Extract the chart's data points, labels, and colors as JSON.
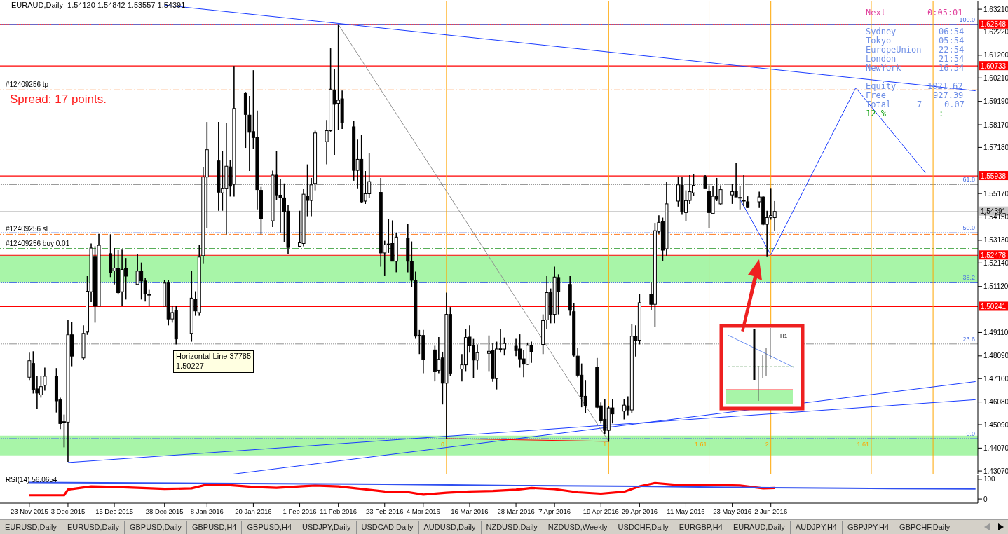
{
  "chart_data": [
    {
      "type": "candlestick",
      "title": "EURAUD,Daily  1.54120 1.54842 1.53557 1.54391",
      "tick_labels": "y",
      "x": [
        "2015-11-23",
        "2015-11-24",
        "2015-11-25",
        "2015-11-26",
        "2015-11-27",
        "2015-11-30",
        "2015-12-01",
        "2015-12-02",
        "2015-12-03",
        "2015-12-04",
        "2015-12-07",
        "2015-12-08",
        "2015-12-09",
        "2015-12-10",
        "2015-12-11",
        "2015-12-14",
        "2015-12-15",
        "2015-12-16",
        "2015-12-17",
        "2015-12-18",
        "2015-12-21",
        "2015-12-22",
        "2015-12-23",
        "2015-12-24",
        "2015-12-28",
        "2015-12-29",
        "2015-12-30",
        "2015-12-31",
        "2016-01-04",
        "2016-01-05",
        "2016-01-06",
        "2016-01-07",
        "2016-01-08",
        "2016-01-11",
        "2016-01-12",
        "2016-01-13",
        "2016-01-14",
        "2016-01-15",
        "2016-01-18",
        "2016-01-19",
        "2016-01-20",
        "2016-01-21",
        "2016-01-22",
        "2016-01-25",
        "2016-01-26",
        "2016-01-27",
        "2016-01-28",
        "2016-01-29",
        "2016-02-01",
        "2016-02-02",
        "2016-02-03",
        "2016-02-04",
        "2016-02-05",
        "2016-02-08",
        "2016-02-09",
        "2016-02-10",
        "2016-02-11",
        "2016-02-12",
        "2016-02-15",
        "2016-02-16",
        "2016-02-17",
        "2016-02-18",
        "2016-02-19",
        "2016-02-22",
        "2016-02-23",
        "2016-02-24",
        "2016-02-25",
        "2016-02-26",
        "2016-02-29",
        "2016-03-01",
        "2016-03-02",
        "2016-03-03",
        "2016-03-04",
        "2016-03-07",
        "2016-03-08",
        "2016-03-09",
        "2016-03-10",
        "2016-03-11",
        "2016-03-14",
        "2016-03-15",
        "2016-03-16",
        "2016-03-17",
        "2016-03-18",
        "2016-03-21",
        "2016-03-22",
        "2016-03-23",
        "2016-03-24",
        "2016-03-25",
        "2016-03-28",
        "2016-03-29",
        "2016-03-30",
        "2016-03-31",
        "2016-04-01",
        "2016-04-04",
        "2016-04-05",
        "2016-04-06",
        "2016-04-07",
        "2016-04-08",
        "2016-04-11",
        "2016-04-12",
        "2016-04-13",
        "2016-04-14",
        "2016-04-15",
        "2016-04-18",
        "2016-04-19",
        "2016-04-20",
        "2016-04-21",
        "2016-04-22",
        "2016-04-25",
        "2016-04-26",
        "2016-04-27",
        "2016-04-28",
        "2016-04-29",
        "2016-05-02",
        "2016-05-03",
        "2016-05-04",
        "2016-05-05",
        "2016-05-06",
        "2016-05-09",
        "2016-05-10",
        "2016-05-11",
        "2016-05-12",
        "2016-05-13",
        "2016-05-16",
        "2016-05-17",
        "2016-05-18",
        "2016-05-19",
        "2016-05-20",
        "2016-05-23",
        "2016-05-24",
        "2016-05-25",
        "2016-05-26",
        "2016-05-27",
        "2016-05-30",
        "2016-05-31",
        "2016-06-01",
        "2016-06-02",
        "2016-06-03"
      ],
      "ohlc": [
        [
          1.4716,
          1.4823,
          1.4704,
          1.4788
        ],
        [
          1.4776,
          1.4829,
          1.4645,
          1.4663
        ],
        [
          1.4665,
          1.4722,
          1.4579,
          1.4647
        ],
        [
          1.4639,
          1.472,
          1.4627,
          1.4675
        ],
        [
          1.4681,
          1.4758,
          1.4657,
          1.472
        ],
        [
          1.472,
          1.4756,
          1.4562,
          1.4613
        ],
        [
          1.4617,
          1.4627,
          1.449,
          1.4514
        ],
        [
          1.4522,
          1.4553,
          1.441,
          1.452
        ],
        [
          1.452,
          1.4966,
          1.4347,
          1.4901
        ],
        [
          1.4901,
          1.4958,
          1.4764,
          1.4808
        ],
        [
          1.48,
          1.4942,
          1.4791,
          1.4907
        ],
        [
          1.4913,
          1.5157,
          1.4901,
          1.5091
        ],
        [
          1.5089,
          1.5299,
          1.5044,
          1.5279
        ],
        [
          1.524,
          1.5287,
          1.4954,
          1.5026
        ],
        [
          1.5026,
          1.5341,
          1.5026,
          1.5291
        ],
        [
          1.5255,
          1.5339,
          1.5153,
          1.5172
        ],
        [
          1.518,
          1.5279,
          1.5121,
          1.5192
        ],
        [
          1.5192,
          1.527,
          1.5077,
          1.5085
        ],
        [
          1.5089,
          1.5272,
          1.5026,
          1.5186
        ],
        [
          1.5191,
          1.5236,
          1.5055,
          1.5157
        ],
        [
          1.5121,
          1.5252,
          1.5117,
          1.5179
        ],
        [
          1.5177,
          1.5216,
          1.5055,
          1.5136
        ],
        [
          1.5136,
          1.5148,
          1.5046,
          1.5082
        ],
        [
          1.5077,
          1.5097,
          1.5026,
          1.5075
        ],
        [
          1.5026,
          1.5139,
          1.5026,
          1.5127
        ],
        [
          1.5127,
          1.5139,
          1.4942,
          1.497
        ],
        [
          1.497,
          1.5026,
          1.4954,
          1.4998
        ],
        [
          1.5008,
          1.5026,
          1.4859,
          1.4883
        ],
        [
          1.4907,
          1.518,
          1.4871,
          1.5061
        ],
        [
          1.5055,
          1.5091,
          1.4984,
          1.5005
        ],
        [
          1.4998,
          1.5293,
          1.4984,
          1.524
        ],
        [
          1.5246,
          1.5633,
          1.521,
          1.5589
        ],
        [
          1.5589,
          1.5829,
          1.5365,
          1.5708
        ],
        [
          1.5659,
          1.5829,
          1.5442,
          1.5523
        ],
        [
          1.552,
          1.5704,
          1.5442,
          1.554
        ],
        [
          1.554,
          1.5823,
          1.5339,
          1.5636
        ],
        [
          1.5633,
          1.5662,
          1.5504,
          1.5549
        ],
        [
          1.5558,
          1.6073,
          1.5504,
          1.5888
        ],
        [
          1.5954,
          1.596,
          1.5716,
          1.5862
        ],
        [
          1.5859,
          1.5942,
          1.5615,
          1.5784
        ],
        [
          1.5787,
          1.6055,
          1.571,
          1.5761
        ],
        [
          1.5763,
          1.5879,
          1.5448,
          1.5534
        ],
        [
          1.5531,
          1.5546,
          1.5339,
          1.5406
        ],
        [
          1.5398,
          1.5617,
          1.5371,
          1.5597
        ],
        [
          1.5597,
          1.5704,
          1.549,
          1.5511
        ],
        [
          1.551,
          1.5579,
          1.5347,
          1.5498
        ],
        [
          1.5498,
          1.5561,
          1.5305,
          1.5439
        ],
        [
          1.544,
          1.5466,
          1.5252,
          1.5282
        ],
        [
          1.5287,
          1.5442,
          1.5282,
          1.5302
        ],
        [
          1.5299,
          1.5537,
          1.5287,
          1.5514
        ],
        [
          1.5505,
          1.5644,
          1.5418,
          1.5487
        ],
        [
          1.5487,
          1.5585,
          1.5418,
          1.5555
        ],
        [
          1.5561,
          1.5791,
          1.5531,
          1.5781
        ],
        [
          1.5743,
          1.5838,
          1.5644,
          1.5791
        ],
        [
          1.5791,
          1.615,
          1.5787,
          1.5972
        ],
        [
          1.5969,
          1.6061,
          1.5686,
          1.5906
        ],
        [
          1.591,
          1.6255,
          1.5793,
          1.5924
        ],
        [
          1.593,
          1.5966,
          1.5799,
          1.5827
        ],
        [
          1.5808,
          1.5835,
          1.5573,
          1.5618
        ],
        [
          1.5618,
          1.5752,
          1.554,
          1.5666
        ],
        [
          1.5666,
          1.5772,
          1.5478,
          1.5481
        ],
        [
          1.5484,
          1.5615,
          1.5472,
          1.5516
        ],
        [
          1.5516,
          1.5692,
          1.5496,
          1.5569
        ],
        [
          1.5522,
          1.5585,
          1.5198,
          1.5258
        ],
        [
          1.5258,
          1.5311,
          1.5157,
          1.5293
        ],
        [
          1.5296,
          1.5406,
          1.5258,
          1.5297
        ],
        [
          1.5299,
          1.54,
          1.5222,
          1.5222
        ],
        [
          1.5222,
          1.5347,
          1.5174,
          1.5327
        ],
        [
          1.5321,
          1.5386,
          1.5174,
          1.5222
        ],
        [
          1.5222,
          1.5308,
          1.5109,
          1.5139
        ],
        [
          1.5139,
          1.5177,
          1.4883,
          1.4895
        ],
        [
          1.4898,
          1.4922,
          1.4817,
          1.4899
        ],
        [
          1.4898,
          1.4922,
          1.4734,
          1.4794
        ],
        [
          1.4835,
          1.4853,
          1.4698,
          1.474
        ],
        [
          1.4746,
          1.4891,
          1.4734,
          1.4794
        ],
        [
          1.48,
          1.4827,
          1.4597,
          1.469
        ],
        [
          1.469,
          1.5085,
          1.4445,
          1.499
        ],
        [
          1.499,
          1.5022,
          1.4722,
          1.4734
        ],
        [
          1.4752,
          1.4817,
          1.4698,
          1.477
        ],
        [
          1.477,
          1.4925,
          1.474,
          1.4889
        ],
        [
          1.4891,
          1.4942,
          1.4823,
          1.4853
        ],
        [
          1.4853,
          1.4883,
          1.4713,
          1.4791
        ],
        [
          1.4791,
          1.4859,
          1.4748,
          1.4823
        ],
        [
          1.482,
          1.4898,
          1.474,
          1.4829
        ],
        [
          1.4832,
          1.4865,
          1.4696,
          1.471
        ],
        [
          1.471,
          1.4871,
          1.4663,
          1.4839
        ],
        [
          1.4839,
          1.4927,
          1.4823,
          1.484
        ],
        [
          1.4839,
          1.4889,
          1.4811,
          1.4863
        ],
        [
          1.4851,
          1.4883,
          1.4808,
          1.4832
        ],
        [
          1.4839,
          1.4903,
          1.4758,
          1.4796
        ],
        [
          1.4796,
          1.4835,
          1.4716,
          1.4773
        ],
        [
          1.4772,
          1.4867,
          1.477,
          1.4855
        ],
        [
          1.4856,
          1.4871,
          1.4779,
          1.4826
        ],
        [
          1.4859,
          1.499,
          1.4817,
          1.4963
        ],
        [
          1.4966,
          1.5157,
          1.4925,
          1.5085
        ],
        [
          1.5085,
          1.5103,
          1.4951,
          1.499
        ],
        [
          1.499,
          1.5198,
          1.4951,
          1.5153
        ],
        [
          1.5151,
          1.5165,
          1.499,
          1.5089
        ],
        [
          1.5121,
          1.5157,
          1.4984,
          1.5008
        ],
        [
          1.5002,
          1.5038,
          1.4806,
          1.4812
        ],
        [
          1.4808,
          1.4844,
          1.4716,
          1.4725
        ],
        [
          1.4725,
          1.4776,
          1.4585,
          1.4633
        ],
        [
          1.4633,
          1.4704,
          1.4561,
          1.4591
        ],
        [
          1.4758,
          1.48,
          1.4581,
          1.4585
        ],
        [
          1.4591,
          1.4606,
          1.4514,
          1.4526
        ],
        [
          1.4532,
          1.4621,
          1.4466,
          1.4484
        ],
        [
          1.4484,
          1.4591,
          1.4434,
          1.4582
        ],
        [
          1.4582,
          1.4621,
          1.4514,
          1.4556
        ],
        [
          1.4568,
          1.4621,
          1.4532,
          1.4594
        ],
        [
          1.4591,
          1.4633,
          1.455,
          1.4573
        ],
        [
          1.4573,
          1.4948,
          1.4558,
          1.4895
        ],
        [
          1.4895,
          1.4942,
          1.4806,
          1.4877
        ],
        [
          1.4877,
          1.5079,
          1.4859,
          1.5041
        ],
        [
          1.5077,
          1.5129,
          1.5008,
          1.5034
        ],
        [
          1.5034,
          1.5389,
          1.4936,
          1.5355
        ],
        [
          1.5352,
          1.5422,
          1.5341,
          1.5391
        ],
        [
          1.5394,
          1.5412,
          1.5222,
          1.527
        ],
        [
          1.5276,
          1.5567,
          1.5246,
          1.5472
        ],
        [
          1.5484,
          1.5591,
          1.546,
          1.5555
        ],
        [
          1.5553,
          1.5591,
          1.5424,
          1.5439
        ],
        [
          1.5434,
          1.5531,
          1.5395,
          1.5486
        ],
        [
          1.5487,
          1.5597,
          1.5472,
          1.5525
        ],
        [
          1.552,
          1.5603,
          1.5508,
          1.5553
        ],
        [
          1.5591,
          1.5597,
          1.5541,
          1.5541
        ],
        [
          1.5525,
          1.5553,
          1.5365,
          1.5434
        ],
        [
          1.543,
          1.5549,
          1.5427,
          1.5505
        ],
        [
          1.5505,
          1.5585,
          1.5484,
          1.5493
        ],
        [
          1.5472,
          1.5553,
          1.5466,
          1.5534
        ],
        [
          1.5511,
          1.5558,
          1.5472,
          1.5525
        ],
        [
          1.5528,
          1.565,
          1.5502,
          1.5502
        ],
        [
          1.55,
          1.5549,
          1.5448,
          1.5498
        ],
        [
          1.5487,
          1.5597,
          1.5462,
          1.5486
        ],
        [
          1.5481,
          1.5505,
          1.5454,
          1.5456
        ],
        [
          1.5481,
          1.5525,
          1.5454,
          1.5502
        ],
        [
          1.5502,
          1.5508,
          1.5379,
          1.5383
        ],
        [
          1.5383,
          1.5442,
          1.524,
          1.5412
        ],
        [
          1.5413,
          1.5541,
          1.5403,
          1.5421
        ],
        [
          1.5412,
          1.54842,
          1.53557,
          1.54391
        ]
      ],
      "xlim": [
        "2015-11-16",
        "2016-07-25"
      ],
      "ylim": [
        1.4292,
        1.6358
      ],
      "yticks": [
        {
          "value": 1.6321,
          "label": "1.63210"
        },
        {
          "value": 1.6222,
          "label": "1.62220"
        },
        {
          "value": 1.612,
          "label": "1.61200"
        },
        {
          "value": 1.6021,
          "label": "1.60210"
        },
        {
          "value": 1.5919,
          "label": "1.59190"
        },
        {
          "value": 1.5817,
          "label": "1.58170"
        },
        {
          "value": 1.5718,
          "label": "1.57180"
        },
        {
          "value": 1.5517,
          "label": "1.55170"
        },
        {
          "value": 1.5415,
          "label": "1.54150"
        },
        {
          "value": 1.5313,
          "label": "1.53130"
        },
        {
          "value": 1.5214,
          "label": "1.52140"
        },
        {
          "value": 1.5112,
          "label": "1.51120"
        },
        {
          "value": 1.4911,
          "label": "1.49110"
        },
        {
          "value": 1.4809,
          "label": "1.48090"
        },
        {
          "value": 1.471,
          "label": "1.47100"
        },
        {
          "value": 1.4608,
          "label": "1.46080"
        },
        {
          "value": 1.4509,
          "label": "1.45090"
        },
        {
          "value": 1.4407,
          "label": "1.44070"
        },
        {
          "value": 1.4307,
          "label": "1.43070"
        }
      ],
      "bands": [
        {
          "axis": "y",
          "from": 1.5128,
          "to": 1.5248,
          "color": "#a8f5a8"
        },
        {
          "axis": "y",
          "from": 1.4375,
          "to": 1.4461,
          "color": "#a8f5a8"
        }
      ],
      "ref_lines": [
        {
          "axis": "y",
          "value": 1.62548,
          "label": "1.62548",
          "color": "#ff0000",
          "line_style": "solid"
        },
        {
          "axis": "y",
          "value": 1.60733,
          "label": "1.60733",
          "color": "#ff0000",
          "line_style": "solid"
        },
        {
          "axis": "y",
          "value": 1.55938,
          "label": "1.55938",
          "color": "#ff0000",
          "line_style": "solid"
        },
        {
          "axis": "y",
          "value": 1.52478,
          "label": "1.52478",
          "color": "#ff0000",
          "line_style": "solid"
        },
        {
          "axis": "y",
          "value": 1.50241,
          "label": "1.50241",
          "color": "#ff0000",
          "line_style": "solid"
        },
        {
          "axis": "y",
          "value": 1.54391,
          "label": "1.54391",
          "color": "#c8c8c8",
          "line_style": "solid"
        },
        {
          "axis": "y",
          "value": 1.5969,
          "label": "#12409256 tp",
          "color": "#ff7f27",
          "line_style": "dashed"
        },
        {
          "axis": "y",
          "value": 1.5339,
          "label": "#12409256 sl",
          "color": "#ff7f27",
          "line_style": "dashed"
        },
        {
          "axis": "y",
          "value": 1.5277,
          "label": "#12409256 buy 0.01",
          "color": "#2e9a2e",
          "line_style": "dashed"
        },
        {
          "axis": "y",
          "value": 1.6255,
          "color": "#4a6fe3",
          "line_style": "dotted"
        },
        {
          "axis": "y",
          "value": 1.5556,
          "color": "#909090",
          "line_style": "dotted"
        },
        {
          "axis": "y",
          "value": 1.5346,
          "color": "#4a6fe3",
          "line_style": "dotted"
        },
        {
          "axis": "y",
          "value": 1.5128,
          "color": "#4a6fe3",
          "line_style": "dotted"
        },
        {
          "axis": "y",
          "value": 1.4861,
          "color": "#909090",
          "line_style": "dotted"
        },
        {
          "axis": "y",
          "value": 1.4448,
          "color": "#4a6fe3",
          "line_style": "dotted"
        },
        {
          "axis": "x",
          "value": "2016-03-10",
          "label": "0",
          "color": "#ffa500",
          "line_style": "solid"
        },
        {
          "axis": "x",
          "value": "2016-04-21",
          "label": "1",
          "color": "#ffa500",
          "line_style": "solid"
        },
        {
          "axis": "x",
          "value": "2016-05-17",
          "label": "1.61",
          "color": "#ffa500",
          "line_style": "solid"
        },
        {
          "axis": "x",
          "value": "2016-06-02",
          "label": "2",
          "color": "#ffa500",
          "line_style": "solid"
        },
        {
          "axis": "x",
          "value": "2016-06-28",
          "label": "1.61",
          "color": "#ffa500",
          "line_style": "solid"
        },
        {
          "axis": "x",
          "value": "2016-07-14",
          "color": "#ffa500",
          "line_style": "solid"
        }
      ],
      "series": [
        {
          "type": "line",
          "color": "#1a3cff",
          "x": [
            "2015-12-28",
            "2016-07-25"
          ],
          "values": [
            1.6339,
            1.5965
          ]
        },
        {
          "type": "line",
          "color": "#1a3cff",
          "x": [
            "2016-05-25",
            "2016-06-02",
            "2016-06-24",
            "2016-07-12"
          ],
          "values": [
            1.5492,
            1.525,
            1.5978,
            1.5608
          ]
        },
        {
          "type": "line",
          "color": "#1a3cff",
          "x": [
            "2015-12-03",
            "2016-07-25"
          ],
          "values": [
            1.4344,
            1.4618
          ]
        },
        {
          "type": "line",
          "color": "#1a3cff",
          "x": [
            "2016-01-14",
            "2016-07-25"
          ],
          "values": [
            1.4292,
            1.4697
          ]
        },
        {
          "type": "line",
          "color": "#909090",
          "x": [
            "2016-02-11",
            "2016-04-21"
          ],
          "values": [
            1.6255,
            1.4436
          ]
        },
        {
          "type": "line",
          "color": "#ff0000",
          "x": [
            "2016-03-10",
            "2016-04-21"
          ],
          "values": [
            1.4448,
            1.4436
          ]
        }
      ],
      "annotations": [
        "Spread: 17 points.",
        "Horizontal Line 37785",
        "1.50227",
        "H1",
        "Next",
        "0:05:01",
        "Sydney",
        "06:54",
        "Tokyo",
        "05:54",
        "EuropeUnion",
        "22:54",
        "London",
        "21:54",
        "NewYork",
        "16:54",
        "Equity",
        "1021.62",
        "Free",
        "927.39",
        "Total",
        "7",
        "0.07",
        "12 %",
        ":",
        "EURUSD,Daily",
        "EURUSD,Daily",
        "GBPUSD,Daily",
        "GBPUSD,H4",
        "GBPUSD,H4",
        "USDJPY,Daily",
        "USDCAD,Daily",
        "AUDUSD,Daily",
        "NZDUSD,Daily",
        "NZDUSD,Weekly",
        "USDCHF,Daily",
        "EURGBP,H4",
        "EURAUD,Daily",
        "AUDJPY,H4",
        "GBPJPY,H4",
        "GBPCHF,Daily",
        {
          "text": "100.0",
          "y": 1.6255
        },
        {
          "text": "61.8",
          "y": 1.5556
        },
        {
          "text": "50.0",
          "y": 1.5346
        },
        {
          "text": "38.2",
          "y": 1.5128
        },
        {
          "text": "23.6",
          "y": 1.4861
        },
        {
          "text": "0.0",
          "y": 1.4448
        }
      ]
    },
    {
      "type": "line",
      "title": "RSI(14) 56.0654",
      "xlim": [
        "2015-11-16",
        "2016-07-25"
      ],
      "xticks": [
        {
          "value": "2015-11-23",
          "label": "23 Nov 2015"
        },
        {
          "value": "2015-12-03",
          "label": "3 Dec 2015"
        },
        {
          "value": "2015-12-15",
          "label": "15 Dec 2015"
        },
        {
          "value": "2015-12-28",
          "label": "28 Dec 2015"
        },
        {
          "value": "2016-01-08",
          "label": "8 Jan 2016"
        },
        {
          "value": "2016-01-20",
          "label": "20 Jan 2016"
        },
        {
          "value": "2016-02-01",
          "label": "1 Feb 2016"
        },
        {
          "value": "2016-02-11",
          "label": "11 Feb 2016"
        },
        {
          "value": "2016-02-23",
          "label": "23 Feb 2016"
        },
        {
          "value": "2016-03-04",
          "label": "4 Mar 2016"
        },
        {
          "value": "2016-03-16",
          "label": "16 Mar 2016"
        },
        {
          "value": "2016-03-28",
          "label": "28 Mar 2016"
        },
        {
          "value": "2016-04-07",
          "label": "7 Apr 2016"
        },
        {
          "value": "2016-04-19",
          "label": "19 Apr 2016"
        },
        {
          "value": "2016-04-29",
          "label": "29 Apr 2016"
        },
        {
          "value": "2016-05-11",
          "label": "11 May 2016"
        },
        {
          "value": "2016-05-23",
          "label": "23 May 2016"
        },
        {
          "value": "2016-06-02",
          "label": "2 Jun 2016"
        }
      ],
      "ylim": [
        -21,
        121
      ],
      "yticks": [
        0,
        100
      ],
      "series": [
        {
          "color": "#ff0000",
          "x": [
            "2015-11-23",
            "2015-12-02",
            "2015-12-03",
            "2015-12-09",
            "2015-12-15",
            "2015-12-21",
            "2015-12-28",
            "2016-01-04",
            "2016-01-08",
            "2016-01-14",
            "2016-01-20",
            "2016-01-26",
            "2016-02-01",
            "2016-02-05",
            "2016-02-11",
            "2016-02-17",
            "2016-02-23",
            "2016-02-29",
            "2016-03-04",
            "2016-03-10",
            "2016-03-16",
            "2016-03-22",
            "2016-03-28",
            "2016-04-01",
            "2016-04-07",
            "2016-04-13",
            "2016-04-19",
            "2016-04-25",
            "2016-04-29",
            "2016-05-03",
            "2016-05-09",
            "2016-05-13",
            "2016-05-19",
            "2016-05-25",
            "2016-05-31",
            "2016-06-03"
          ],
          "values": [
            19,
            19,
            48,
            64,
            61,
            57,
            51,
            54,
            73,
            70,
            61,
            57,
            64,
            68,
            64,
            51,
            38,
            35,
            22,
            32,
            38,
            41,
            47,
            56,
            50,
            34,
            27,
            37,
            64,
            81,
            71,
            69,
            71,
            68,
            54,
            56.0654
          ]
        },
        {
          "color": "#3050f0",
          "x": [
            "2015-11-23",
            "2016-01-08",
            "2016-02-23",
            "2016-03-28",
            "2016-04-29",
            "2016-06-02",
            "2016-06-22",
            "2016-07-25"
          ],
          "values": [
            84,
            79,
            75,
            68,
            64,
            57,
            54,
            51
          ]
        }
      ]
    }
  ]
}
